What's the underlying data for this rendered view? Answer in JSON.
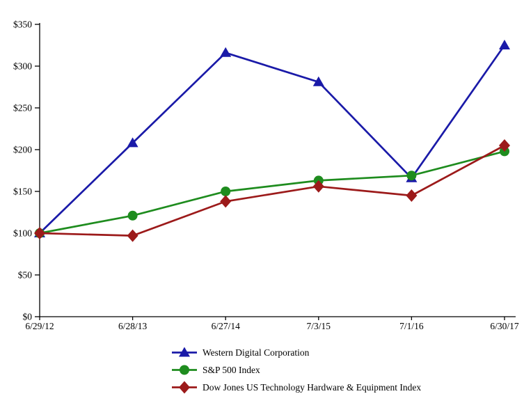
{
  "chart_data": {
    "type": "line",
    "title": "",
    "x": [
      "6/29/12",
      "6/28/13",
      "6/27/14",
      "7/3/15",
      "7/1/16",
      "6/30/17"
    ],
    "series": [
      {
        "name": "Western Digital Corporation",
        "marker": "triangle",
        "color": "#1A1AA8",
        "values": [
          100,
          208,
          316,
          281,
          166,
          325
        ]
      },
      {
        "name": "S&P 500 Index",
        "marker": "circle",
        "color": "#1E8C1E",
        "values": [
          100,
          121,
          150,
          163,
          169,
          198
        ]
      },
      {
        "name": "Dow Jones US Technology Hardware & Equipment Index",
        "marker": "diamond",
        "color": "#9C1A1A",
        "values": [
          100,
          97,
          138,
          156,
          145,
          205
        ]
      }
    ],
    "ytick_labels": [
      "$0",
      "$50",
      "$100",
      "$150",
      "$200",
      "$250",
      "$300",
      "$350"
    ],
    "ytick_step": 50,
    "ylim": [
      0,
      350
    ],
    "xlabel": "",
    "ylabel": "",
    "grid": false,
    "legend_position": "bottom-center",
    "axis_color": "#000000",
    "text_color": "#000000"
  }
}
